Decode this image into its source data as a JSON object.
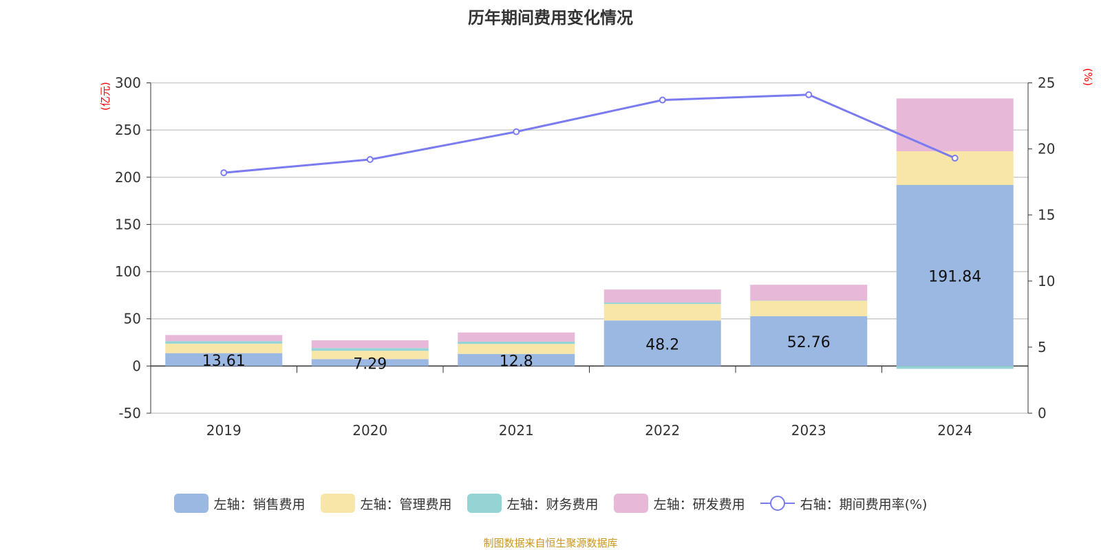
{
  "title": "历年期间费用变化情况",
  "footer": "制图数据来自恒生聚源数据库",
  "chart_data": {
    "type": "bar",
    "title": "历年期间费用变化情况",
    "categories": [
      "2019",
      "2020",
      "2021",
      "2022",
      "2023",
      "2024"
    ],
    "left_axis": {
      "unit": "(亿元)",
      "ylim": [
        -50,
        300
      ],
      "ticks": [
        -50,
        0,
        50,
        100,
        150,
        200,
        250,
        300
      ]
    },
    "right_axis": {
      "unit": "(%)",
      "ylim": [
        0,
        25
      ],
      "ticks": [
        0,
        5,
        10,
        15,
        20,
        25
      ]
    },
    "grid": true,
    "legend_position": "bottom",
    "series": [
      {
        "name": "左轴：销售费用",
        "type": "bar",
        "axis": "left",
        "color": "#9ab8e2",
        "values": [
          13.61,
          7.29,
          12.8,
          48.2,
          52.76,
          191.84
        ],
        "labels": [
          "13.61",
          "7.29",
          "12.8",
          "48.2",
          "52.76",
          "191.84"
        ]
      },
      {
        "name": "左轴：管理费用",
        "type": "bar",
        "axis": "left",
        "color": "#f8e6a8",
        "values": [
          10.1,
          8.8,
          10.6,
          17.5,
          16.3,
          35.7
        ]
      },
      {
        "name": "左轴：财务费用",
        "type": "bar",
        "axis": "left",
        "color": "#94d4d4",
        "values": [
          2.6,
          2.9,
          2.4,
          1.5,
          0.3,
          -3.0
        ]
      },
      {
        "name": "左轴：研发费用",
        "type": "bar",
        "axis": "left",
        "color": "#e8b8d8",
        "values": [
          6.5,
          8.2,
          9.7,
          13.8,
          16.7,
          55.9
        ]
      },
      {
        "name": "右轴：期间费用率(%)",
        "type": "line",
        "axis": "right",
        "color": "#7b7bf0",
        "values": [
          18.2,
          19.2,
          21.3,
          23.7,
          24.1,
          19.3
        ]
      }
    ]
  }
}
